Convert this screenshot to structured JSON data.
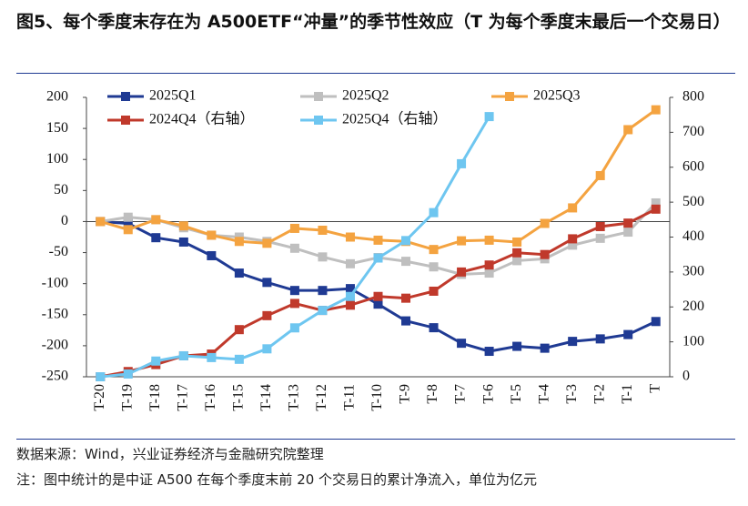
{
  "chart_data": {
    "type": "line",
    "title": "图5、每个季度末存在为 A500ETF“冲量”的季节性效应（T 为每个季度末最后一个交易日）",
    "source": "数据来源：Wind，兴业证券经济与金融研究院整理",
    "note": "注：图中统计的是中证 A500 在每个季度末前 20 个交易日的累计净流入，单位为亿元",
    "categories": [
      "T-20",
      "T-19",
      "T-18",
      "T-17",
      "T-16",
      "T-15",
      "T-14",
      "T-13",
      "T-12",
      "T-11",
      "T-10",
      "T-9",
      "T-8",
      "T-7",
      "T-6",
      "T-5",
      "T-4",
      "T-3",
      "T-2",
      "T-1",
      "T"
    ],
    "ylim": [
      -250,
      200
    ],
    "yticks": [
      -250,
      -200,
      -150,
      -100,
      -50,
      0,
      50,
      100,
      150,
      200
    ],
    "y2lim": [
      0,
      800
    ],
    "y2ticks": [
      0,
      100,
      200,
      300,
      400,
      500,
      600,
      700,
      800
    ],
    "legend": "top",
    "series": [
      {
        "name": "2025Q1",
        "color": "#1f3a93",
        "values": [
          0,
          -3,
          -26,
          -33,
          -55,
          -83,
          -98,
          -111,
          -111,
          -108,
          -133,
          -160,
          -171,
          -196,
          -209,
          -201,
          -204,
          -193,
          -189,
          -182,
          -161
        ]
      },
      {
        "name": "2025Q2",
        "color": "#bfbfbf",
        "values": [
          0,
          7,
          3,
          -10,
          -22,
          -25,
          -32,
          -43,
          -57,
          -68,
          -58,
          -64,
          -73,
          -85,
          -83,
          -63,
          -60,
          -38,
          -27,
          -17,
          30
        ]
      },
      {
        "name": "2025Q3",
        "color": "#f4a340",
        "values": [
          0,
          -13,
          3,
          -7,
          -22,
          -32,
          -35,
          -11,
          -14,
          -25,
          -30,
          -32,
          -45,
          -31,
          -30,
          -33,
          -3,
          22,
          74,
          148,
          180
        ]
      },
      {
        "name": "2024Q4（右轴）",
        "color": "#c0392b",
        "axis": "y2",
        "values": [
          0,
          15,
          35,
          60,
          65,
          135,
          175,
          210,
          190,
          205,
          230,
          225,
          245,
          300,
          320,
          355,
          350,
          395,
          430,
          440,
          480
        ]
      },
      {
        "name": "2025Q4（右轴）",
        "color": "#6ec6f0",
        "axis": "y2",
        "values": [
          0,
          8,
          45,
          60,
          55,
          50,
          80,
          140,
          190,
          230,
          340,
          390,
          470,
          610,
          745,
          null,
          null,
          null,
          null,
          null,
          null
        ]
      }
    ]
  }
}
